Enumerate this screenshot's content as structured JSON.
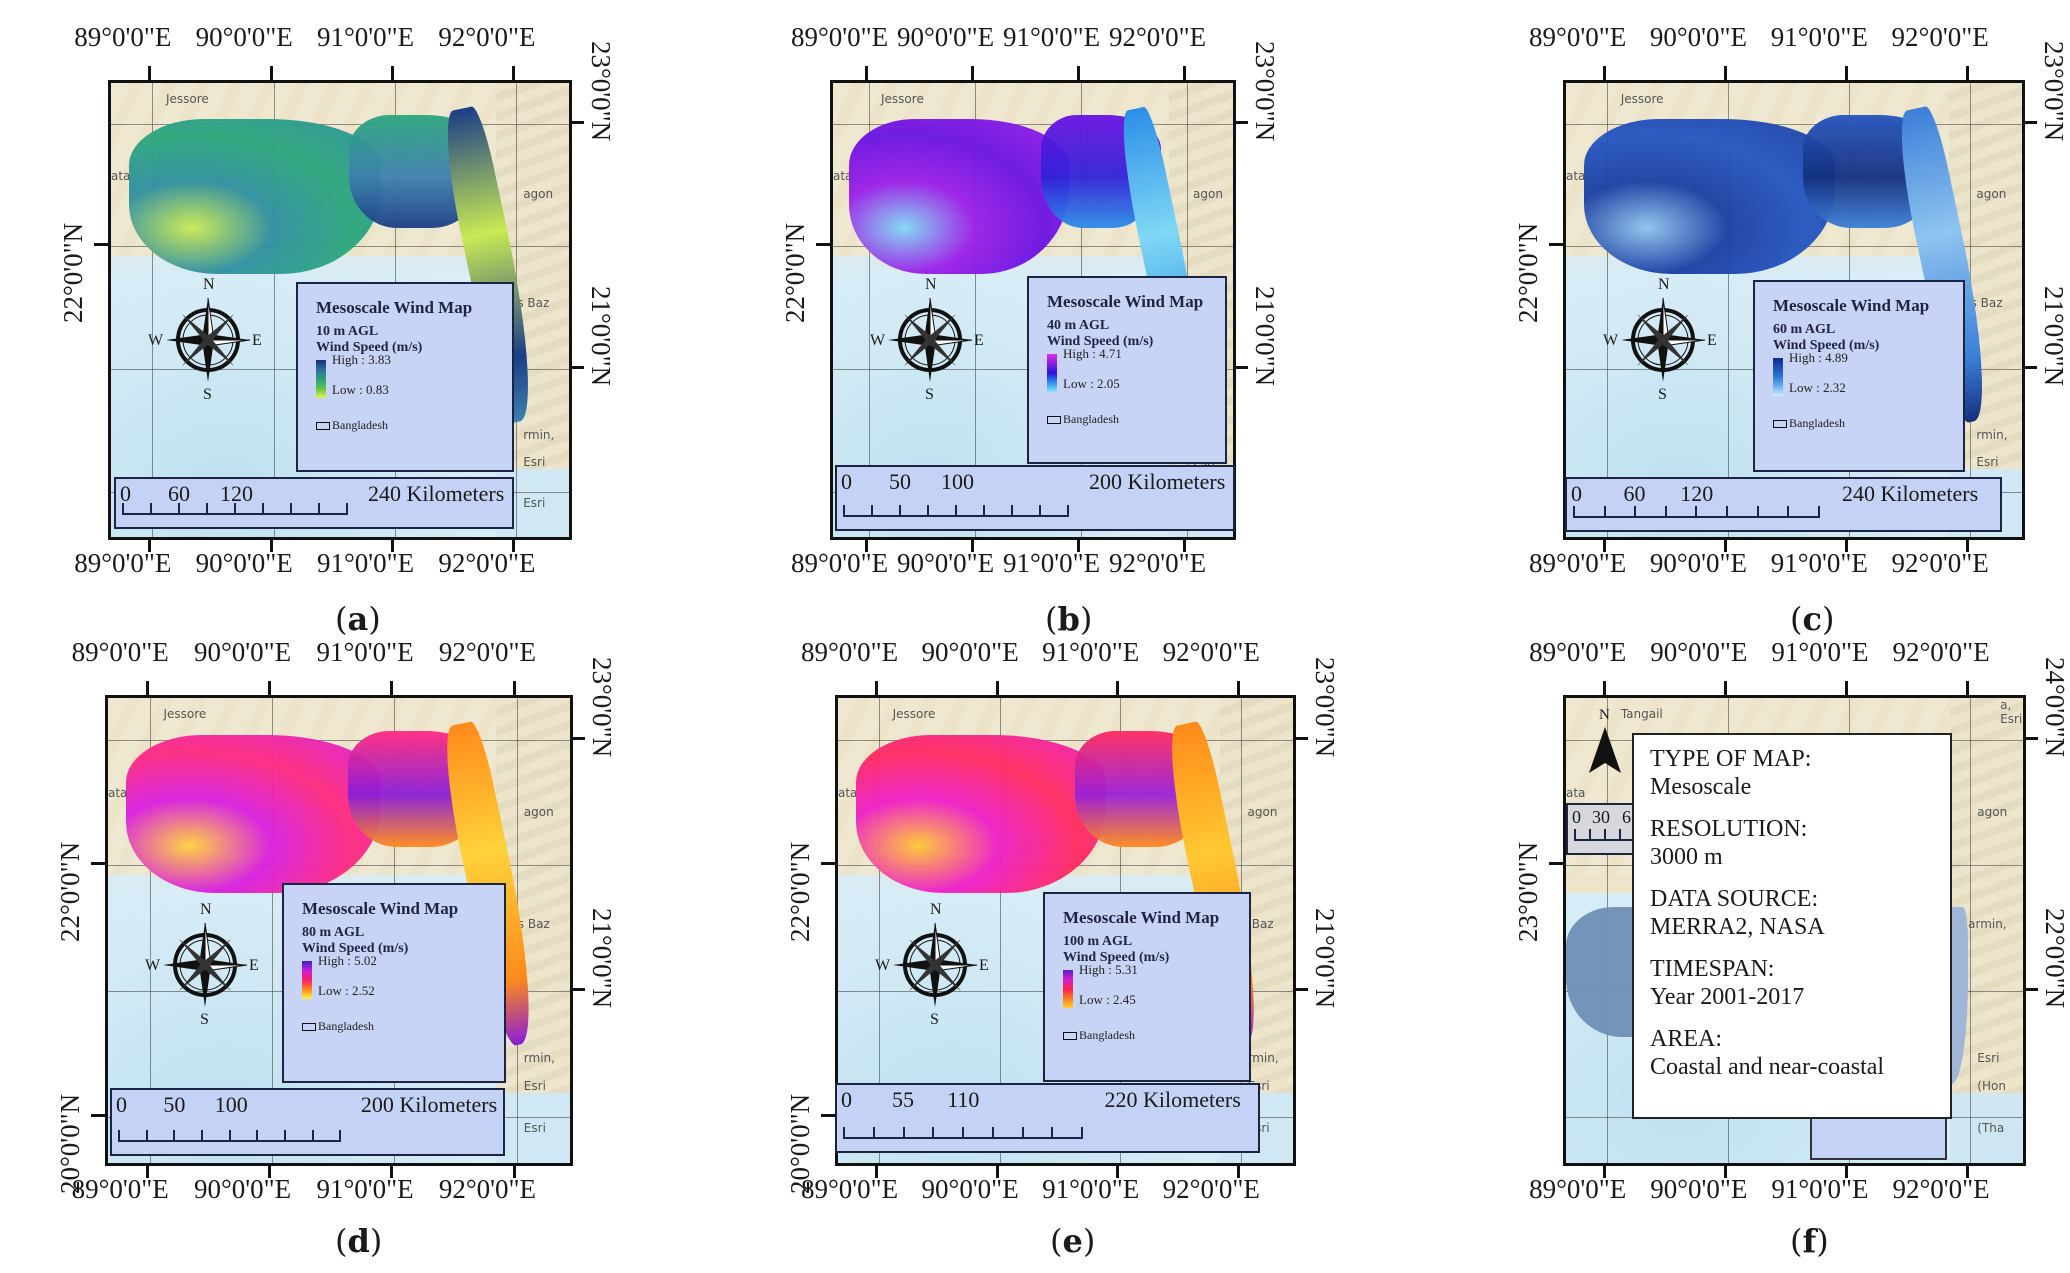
{
  "figure": {
    "region": "Coastal Bangladesh",
    "longitude_labels": [
      "89°0'0\"E",
      "90°0'0\"E",
      "91°0'0\"E",
      "92°0'0\"E"
    ],
    "place_labels": [
      "Jessore",
      "ata",
      "agon",
      "'s Baz",
      "rmin,",
      "Esri",
      "Esri"
    ],
    "panels": [
      {
        "id": "a",
        "caption": "a",
        "legend": {
          "title": "Mesoscale Wind Map",
          "height": "10 m AGL",
          "variable": "Wind Speed (m/s)",
          "high": "High : 3.83",
          "low": "Low : 0.83",
          "boundary": "Bangladesh",
          "ramp_colors": [
            "#1b2a7a",
            "#2f6fa0",
            "#2aa07a",
            "#5ec24a",
            "#e6f25a"
          ]
        },
        "scalebar": {
          "ticks": [
            "0",
            "60",
            "120",
            "240 Kilometers"
          ]
        },
        "lat_labels_left": [
          "22°0'0\"N"
        ],
        "lat_labels_right": [
          "23°0'0\"N",
          "21°0'0\"N"
        ],
        "compass": {
          "n": "N",
          "s": "S",
          "e": "E",
          "w": "W"
        }
      },
      {
        "id": "b",
        "caption": "b",
        "legend": {
          "title": "Mesoscale Wind Map",
          "height": "40 m AGL",
          "variable": "Wind Speed (m/s)",
          "high": "High : 4.71",
          "low": "Low : 2.05",
          "boundary": "Bangladesh",
          "ramp_colors": [
            "#e02ee6",
            "#8a1ee0",
            "#2a12e0",
            "#2f8ff0",
            "#86e6f8"
          ]
        },
        "scalebar": {
          "ticks": [
            "0",
            "50",
            "100",
            "200 Kilometers"
          ]
        },
        "lat_labels_left": [
          "22°0'0\"N"
        ],
        "lat_labels_right": [
          "23°0'0\"N",
          "21°0'0\"N"
        ],
        "compass": {
          "n": "N",
          "s": "S",
          "e": "E",
          "w": "W"
        }
      },
      {
        "id": "c",
        "caption": "c",
        "legend": {
          "title": "Mesoscale Wind Map",
          "height": "60 m AGL",
          "variable": "Wind Speed (m/s)",
          "high": "High : 4.89",
          "low": "Low : 2.32",
          "boundary": "Bangladesh",
          "ramp_colors": [
            "#0c2c8a",
            "#1d4fb5",
            "#2f77d6",
            "#6fb0ec",
            "#d6ecfb"
          ]
        },
        "scalebar": {
          "ticks": [
            "0",
            "60",
            "120",
            "240 Kilometers"
          ]
        },
        "lat_labels_left": [
          "22°0'0\"N"
        ],
        "lat_labels_right": [
          "23°0'0\"N",
          "21°0'0\"N"
        ],
        "compass": {
          "n": "N",
          "s": "S",
          "e": "E",
          "w": "W"
        }
      },
      {
        "id": "d",
        "caption": "d",
        "legend": {
          "title": "Mesoscale Wind Map",
          "height": "80 m AGL",
          "variable": "Wind Speed (m/s)",
          "high": "High : 5.02",
          "low": "Low : 2.52",
          "boundary": "Bangladesh",
          "ramp_colors": [
            "#3a22c8",
            "#c81ed8",
            "#ff1f6a",
            "#ff8a14",
            "#fff45a"
          ]
        },
        "scalebar": {
          "ticks": [
            "0",
            "50",
            "100",
            "200 Kilometers"
          ]
        },
        "lat_labels_left": [
          "22°0'0\"N",
          "20°0'0\"N"
        ],
        "lat_labels_right": [
          "23°0'0\"N",
          "21°0'0\"N"
        ],
        "compass": {
          "n": "N",
          "s": "S",
          "e": "E",
          "w": "W"
        }
      },
      {
        "id": "e",
        "caption": "e",
        "legend": {
          "title": "Mesoscale Wind Map",
          "height": "100 m AGL",
          "variable": "Wind Speed (m/s)",
          "high": "High : 5.31",
          "low": "Low : 2.45",
          "boundary": "Bangladesh",
          "ramp_colors": [
            "#5a1ec8",
            "#d01ec8",
            "#ff2050",
            "#ff7a1e",
            "#ffd23a"
          ]
        },
        "scalebar": {
          "ticks": [
            "0",
            "55",
            "110",
            "220 Kilometers"
          ]
        },
        "lat_labels_left": [
          "22°0'0\"N",
          "20°0'0\"N"
        ],
        "lat_labels_right": [
          "23°0'0\"N",
          "21°0'0\"N"
        ],
        "compass": {
          "n": "N",
          "s": "S",
          "e": "E",
          "w": "W"
        }
      },
      {
        "id": "f",
        "caption": "f",
        "info": [
          {
            "key": "TYPE OF MAP:",
            "value": "Mesoscale"
          },
          {
            "key": "RESOLUTION:",
            "value": "3000 m"
          },
          {
            "key": "DATA SOURCE:",
            "value": "MERRA2, NASA"
          },
          {
            "key": "TIMESPAN:",
            "value": "Year 2001-2017"
          },
          {
            "key": "AREA:",
            "value": "Coastal and near-coastal"
          }
        ],
        "north_arrow": "N",
        "scalebar": {
          "ticks": [
            "0",
            "30",
            "6"
          ]
        },
        "lat_labels_left": [
          "23°0'0\"N"
        ],
        "lat_labels_right": [
          "24°0'0\"N",
          "22°0'0\"N"
        ],
        "place_labels": [
          "Tangail",
          "ata",
          "agon",
          "armin,",
          "Esri",
          "(Hon",
          "(Tha",
          "a, Esri"
        ]
      }
    ]
  }
}
